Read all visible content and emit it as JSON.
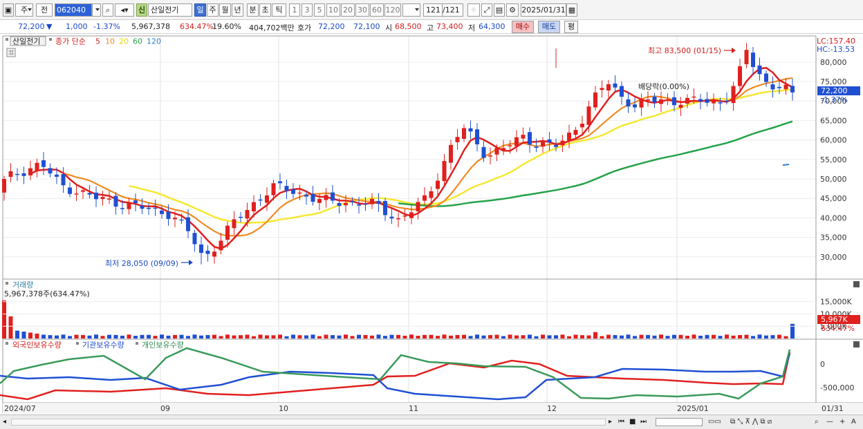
{
  "toolbar": {
    "market_label": "주",
    "prev_label": "전",
    "code": "062040",
    "badge": "신",
    "stock_name": "산일전기",
    "periods": [
      "일",
      "주",
      "월",
      "년",
      "분",
      "초",
      "틱"
    ],
    "active_period": "일",
    "intervals": [
      "1",
      "3",
      "5",
      "10",
      "20",
      "30",
      "60",
      "120"
    ],
    "count": "121",
    "count_total": "/121",
    "date": "2025/01/31"
  },
  "quote": {
    "price": "72,200",
    "change_arrow": "▼",
    "change": "1,000",
    "change_pct": "-1.37%",
    "volume": "5,967,378",
    "volume_ratio": "634.47%",
    "turnover": "19.60%",
    "amount": "404,702백만",
    "bid_label": "호가",
    "bid": "72,200",
    "ask": "72,100",
    "open_label": "시",
    "open": "68,500",
    "high_label": "고",
    "high": "73,400",
    "low_label": "저",
    "low": "64,300",
    "buy_label": "매수",
    "sell_label": "매도",
    "eval_label": "평"
  },
  "price_panel": {
    "stock_tag": "산일전기",
    "legend_prefix": "종가 단순",
    "ma_periods": [
      "5",
      "10",
      "20",
      "60",
      "120"
    ],
    "lc": "LC:157.40",
    "hc": "HC:-13.53",
    "current_price_tag": "72,200",
    "current_change_tag": "-1.37%",
    "high_annotation": "최고 83,500 (01/15)",
    "low_annotation": "최저 28,050 (09/09)",
    "dividend_annotation": "배당락(0.00%)",
    "y_ticks": [
      "80,000",
      "75,000",
      "70,000",
      "65,000",
      "60,000",
      "55,000",
      "50,000",
      "45,000",
      "40,000",
      "35,000",
      "30,000"
    ]
  },
  "volume_panel": {
    "title": "거래량",
    "info": "5,967,378주(634.47%)",
    "y_ticks": [
      "15,000K",
      "10,000K",
      "5,000K"
    ],
    "tag_value": "5,967K",
    "tag_pct": "634.47%"
  },
  "holdings_panel": {
    "legend": [
      "외국인보유수량",
      "기관보유수량",
      "개인보유수량"
    ],
    "y_ticks": [
      "0",
      "-500,000"
    ]
  },
  "x_axis": {
    "labels": [
      "2024/07",
      "09",
      "10",
      "11",
      "12",
      "2025/01"
    ],
    "right_label": "01/31"
  },
  "colors": {
    "up": "#e0201e",
    "down": "#1f4fd3",
    "ma5": "#e0201e",
    "ma10": "#f08a20",
    "ma20": "#f5e830",
    "ma60": "#24a24a",
    "ma120": "#2a7fd0",
    "foreign": "#1f4fd3",
    "institution": "#e0201e",
    "individual": "#3a9a5a"
  },
  "chart_data": {
    "type": "candlestick",
    "count": 121,
    "first_close": 50000,
    "last_close": 72200,
    "high": 83500,
    "high_date": "01/15",
    "low": 28050,
    "low_date": "09/09",
    "ylim": [
      25000,
      86000
    ]
  }
}
